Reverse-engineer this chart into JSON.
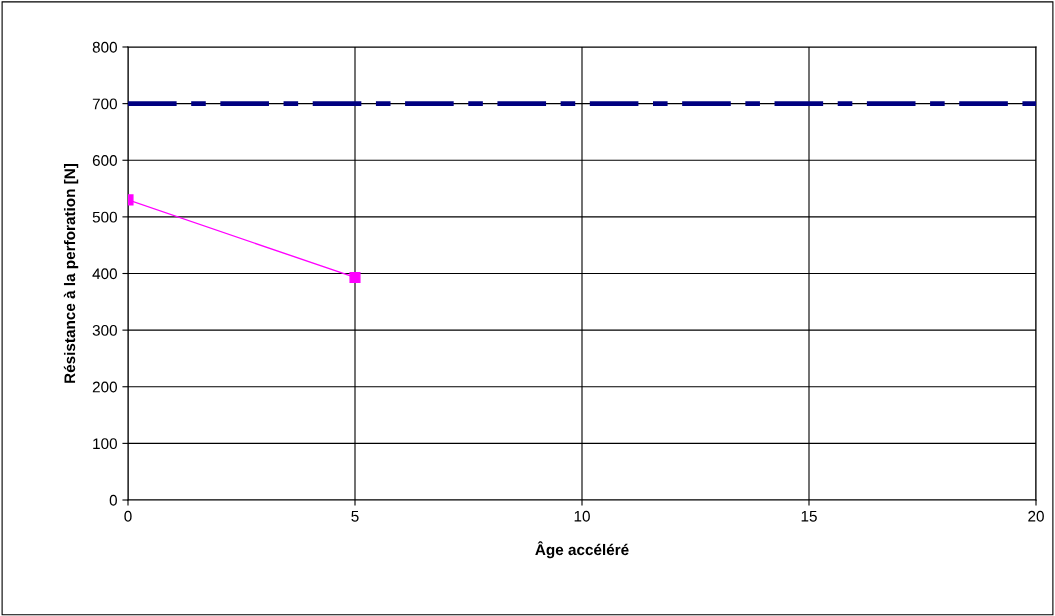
{
  "chart_data": {
    "type": "line",
    "xlabel": "Âge accéléré",
    "ylabel": "Résistance à la perforation [N]",
    "x": [
      0,
      5
    ],
    "series": [
      {
        "color": "#ff00ff",
        "values": [
          530,
          393
        ]
      }
    ],
    "marker": "square",
    "line_style": "solid",
    "xlim": [
      0,
      20
    ],
    "xticks": [
      0,
      5,
      10,
      15,
      20
    ],
    "ylim": [
      0,
      800
    ],
    "yticks": [
      0,
      100,
      200,
      300,
      400,
      500,
      600,
      700,
      800
    ],
    "grid": true,
    "ref_lines": [
      {
        "axis": "y",
        "value": 700,
        "color": "#000080",
        "line_style": "dashed"
      }
    ]
  }
}
